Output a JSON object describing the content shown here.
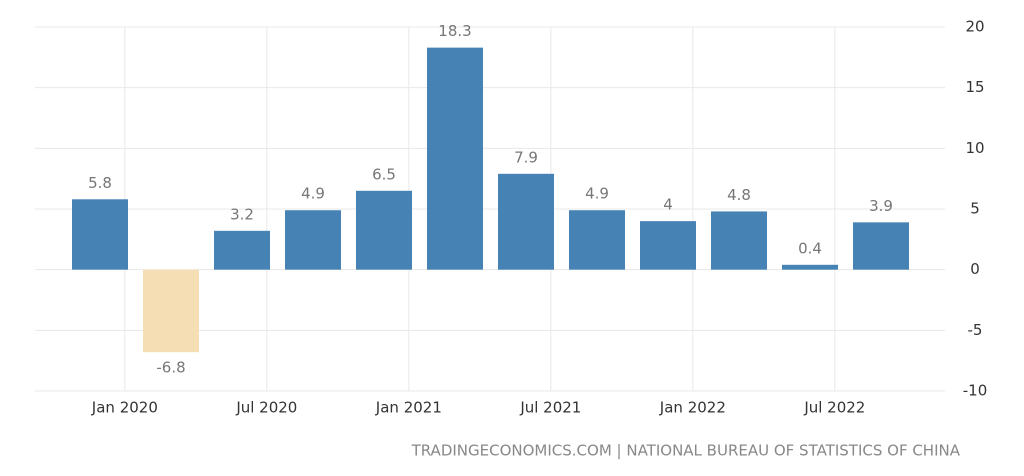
{
  "chart_data": {
    "type": "bar",
    "categories": [
      null,
      null,
      null,
      null,
      null,
      null,
      null,
      null,
      null,
      null,
      null,
      null
    ],
    "values": [
      5.8,
      -6.8,
      3.2,
      4.9,
      6.5,
      18.3,
      7.9,
      4.9,
      4,
      4.8,
      0.4,
      3.9
    ],
    "color": "#4682b4",
    "negative_color": "#f5deb3",
    "xticks": [
      {
        "value": 0.35,
        "label": "Jan 2020"
      },
      {
        "value": 2.35,
        "label": "Jul 2020"
      },
      {
        "value": 4.35,
        "label": "Jan 2021"
      },
      {
        "value": 6.35,
        "label": "Jul 2021"
      },
      {
        "value": 8.35,
        "label": "Jan 2022"
      },
      {
        "value": 10.35,
        "label": "Jul 2022"
      }
    ],
    "ylim": [
      -10,
      20
    ],
    "yticks": [
      -10,
      -5,
      0,
      5,
      10,
      15,
      20
    ],
    "grid": true,
    "source": "TRADINGECONOMICS.COM | NATIONAL BUREAU OF STATISTICS OF CHINA"
  }
}
